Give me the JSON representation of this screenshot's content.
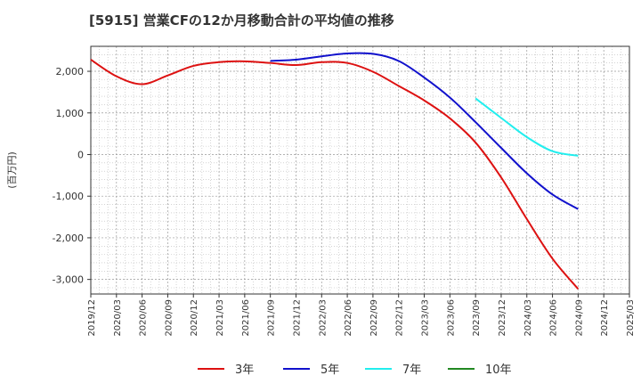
{
  "chart_data": {
    "type": "line",
    "title": "[5915]  営業CFの12か月移動合計の平均値の推移",
    "ylabel": "(百万円)",
    "xlabel": "",
    "x_ticks": [
      "2019/12",
      "2020/03",
      "2020/06",
      "2020/09",
      "2020/12",
      "2021/03",
      "2021/06",
      "2021/09",
      "2021/12",
      "2022/03",
      "2022/06",
      "2022/09",
      "2022/12",
      "2023/03",
      "2023/06",
      "2023/09",
      "2023/12",
      "2024/03",
      "2024/06",
      "2024/09",
      "2024/12",
      "2025/03"
    ],
    "y_ticks": [
      2000,
      1000,
      0,
      -1000,
      -2000,
      -3000
    ],
    "ylim": [
      -3350,
      2600
    ],
    "grid": true,
    "legend_position": "bottom",
    "series": [
      {
        "name": "3年",
        "color": "#dd1111",
        "points": [
          [
            "2019/12",
            2280
          ],
          [
            "2020/03",
            1880
          ],
          [
            "2020/06",
            1690
          ],
          [
            "2020/09",
            1900
          ],
          [
            "2020/12",
            2130
          ],
          [
            "2021/03",
            2220
          ],
          [
            "2021/06",
            2240
          ],
          [
            "2021/09",
            2200
          ],
          [
            "2021/12",
            2150
          ],
          [
            "2022/03",
            2220
          ],
          [
            "2022/06",
            2200
          ],
          [
            "2022/09",
            1990
          ],
          [
            "2022/12",
            1650
          ],
          [
            "2023/03",
            1300
          ],
          [
            "2023/06",
            870
          ],
          [
            "2023/09",
            290
          ],
          [
            "2023/12",
            -550
          ],
          [
            "2024/03",
            -1550
          ],
          [
            "2024/06",
            -2500
          ],
          [
            "2024/09",
            -3230
          ]
        ]
      },
      {
        "name": "5年",
        "color": "#1111cc",
        "points": [
          [
            "2021/09",
            2250
          ],
          [
            "2021/12",
            2280
          ],
          [
            "2022/03",
            2360
          ],
          [
            "2022/06",
            2430
          ],
          [
            "2022/09",
            2420
          ],
          [
            "2022/12",
            2250
          ],
          [
            "2023/03",
            1850
          ],
          [
            "2023/06",
            1370
          ],
          [
            "2023/09",
            780
          ],
          [
            "2023/12",
            160
          ],
          [
            "2024/03",
            -450
          ],
          [
            "2024/06",
            -960
          ],
          [
            "2024/09",
            -1310
          ]
        ]
      },
      {
        "name": "7年",
        "color": "#22eeee",
        "points": [
          [
            "2023/09",
            1350
          ],
          [
            "2023/12",
            880
          ],
          [
            "2024/03",
            420
          ],
          [
            "2024/06",
            80
          ],
          [
            "2024/09",
            -30
          ]
        ]
      },
      {
        "name": "10年",
        "color": "#228822",
        "points": []
      }
    ]
  }
}
